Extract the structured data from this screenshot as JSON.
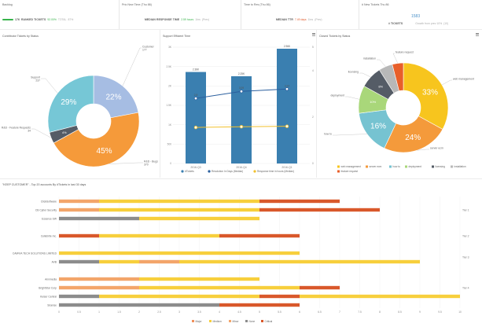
{
  "kpis": {
    "backlog": {
      "title": "Backlog",
      "count": "176",
      "label": "RANKED TICKETS",
      "pct": "92.00%",
      "total_label": "TOTAL",
      "total": "87%"
    },
    "prio_new": {
      "title": "Prio New Time (Thu 86)",
      "label": "MEDIAN RESPONSE TIME",
      "value": "2.59 hours",
      "sub": "1hrs",
      "sub2": "(Prev)"
    },
    "time_res": {
      "title": "Time to Res (Thu 86)",
      "label": "MEDIAN TTR",
      "value": "7.49 days",
      "sub": "1hrs",
      "sub2": "(Prev)"
    },
    "new_tickets": {
      "title": "# New Tickets Thu 86",
      "number": "1583",
      "label": "# TICKETS",
      "sub": "Growth from prev 10%",
      "sub2": "(10)"
    }
  },
  "panels": {
    "contrib_title": "Contributor Tickets by Status",
    "support_title": "Support Efficient Time",
    "closed_title": "Closed Tickets by Status",
    "bottom_title": "\"KEEP CUSTOMER\" - Top 20 accounts By #Tickets in last 30 days"
  },
  "chart_data": [
    {
      "type": "pie",
      "title": "Contributor Tickets by Status",
      "slices": [
        {
          "name": "Customer",
          "value": 22,
          "label": "22%",
          "outer": "Customer\n177",
          "color": "#a6bde3"
        },
        {
          "name": "R&D - Bugs",
          "value": 45,
          "label": "45%",
          "outer": "R&D - Bugs\n370",
          "color": "#f59a3a"
        },
        {
          "name": "R&D - Feature Requests",
          "value": 4,
          "label": "4%",
          "outer": "R&D - Feature Requests\n34",
          "color": "#555c66"
        },
        {
          "name": "Support",
          "value": 29,
          "label": "29%",
          "outer": "Support\n237",
          "color": "#76c7d6"
        }
      ]
    },
    {
      "type": "bar",
      "title": "Support Efficient Time",
      "categories": [
        "2016-Q3",
        "2016-Q4",
        "2016-Q1"
      ],
      "series": [
        {
          "name": "#Tickets",
          "values": [
            2.36,
            2.25,
            2.96
          ],
          "labels": [
            "2.36K",
            "2.25K",
            "2.96K"
          ],
          "color": "#3a7fb0"
        },
        {
          "name": "Resolution In Days (Median)",
          "values": [
            2.8,
            3.1,
            3.2
          ],
          "labels": [
            "2.8",
            "3.09",
            "3.24"
          ],
          "color": "#2b5f9e"
        },
        {
          "name": "Response time in hours (Median)",
          "values": [
            1.55,
            1.58,
            1.6
          ],
          "labels": [
            "",
            "",
            ""
          ],
          "color": "#f2c12e"
        }
      ],
      "y_left": {
        "ticks": [
          "0",
          "500",
          "1K",
          "1.5K",
          "2K",
          "2.5K",
          "3K"
        ],
        "max": 3
      },
      "y_right": {
        "ticks": [
          "0",
          "2",
          "4",
          "5"
        ],
        "max": 5
      }
    },
    {
      "type": "pie",
      "title": "Closed Tickets by Status",
      "slices": [
        {
          "name": "web management",
          "value": 33,
          "label": "33%",
          "outer": "web management",
          "color": "#f7c51e"
        },
        {
          "name": "server ecm",
          "value": 24,
          "label": "24%",
          "outer": "server ecm",
          "color": "#f49a3b"
        },
        {
          "name": "how to",
          "value": 16,
          "label": "16%",
          "outer": "how to",
          "color": "#76c3d1"
        },
        {
          "name": "deployment",
          "value": 10,
          "label": "10%",
          "outer": "deployment",
          "color": "#a9d77a"
        },
        {
          "name": "licensing",
          "value": 8,
          "label": "8%",
          "outer": "licensing",
          "color": "#555c66"
        },
        {
          "name": "installation",
          "value": 5,
          "label": "",
          "outer": "installation",
          "color": "#b8b8b8"
        },
        {
          "name": "feature request",
          "value": 4,
          "label": "",
          "outer": "feature request",
          "color": "#e85f2a"
        }
      ],
      "legend": [
        "web management",
        "server ecm",
        "how to",
        "deployment",
        "licensing",
        "installation",
        "feature request"
      ]
    },
    {
      "type": "bar",
      "orientation": "horizontal-stacked",
      "title": "\"KEEP CUSTOMER\" - Top 20 accounts By #Tickets in last 30 days",
      "series_names": [
        "Major",
        "Medium",
        "Minor",
        "None",
        "Critical"
      ],
      "series_colors": [
        "#f0905c",
        "#f7cf3c",
        "#f3a56a",
        "#8c8c8c",
        "#d9582b"
      ],
      "x_ticks": [
        "0",
        "0.5",
        "1",
        "1.5",
        "2",
        "2.5",
        "3",
        "3.5",
        "4",
        "4.5",
        "5",
        "5.5",
        "6",
        "6.5",
        "7",
        "7.5",
        "8",
        "8.5",
        "9",
        "9.5",
        "10"
      ],
      "x_max": 10,
      "rows": [
        {
          "name": "ClickSoftware",
          "tier": "Tier 1",
          "segments": [
            [
              "#f3a56a",
              1
            ],
            [
              "#f7cf3c",
              4
            ],
            [
              "#d9582b",
              2
            ]
          ]
        },
        {
          "name": "CB Cyber Security",
          "tier": "Tier 1",
          "segments": [
            [
              "#f3a56a",
              1
            ],
            [
              "#f7cf3c",
              4
            ],
            [
              "#d9582b",
              3
            ]
          ]
        },
        {
          "name": "Essence SW",
          "tier": "Tier 1",
          "segments": [
            [
              "#8c8c8c",
              2
            ],
            [
              "#f7cf3c",
              3
            ]
          ]
        },
        {
          "name": "Cellebrite Inc.",
          "tier": "Tier 2",
          "segments": [
            [
              "#d9582b",
              1
            ],
            [
              "#f7cf3c",
              3
            ],
            [
              "#d9582b",
              2
            ]
          ]
        },
        {
          "name": "CAMVIA TECH SOLUTIONS LIMITED",
          "tier": "Tier 3",
          "segments": [
            [
              "#f7cf3c",
              6
            ]
          ]
        },
        {
          "name": "AVB",
          "tier": "Tier 3",
          "segments": [
            [
              "#8c8c8c",
              1
            ],
            [
              "#f7cf3c",
              1
            ],
            [
              "#f3a56a",
              1
            ],
            [
              "#f7cf3c",
              6
            ]
          ]
        },
        {
          "name": "Annmedia",
          "tier": "Tier 4",
          "segments": [
            [
              "#f3a56a",
              2
            ],
            [
              "#f7cf3c",
              3
            ]
          ]
        },
        {
          "name": "BrightStar Corp",
          "tier": "Tier 4",
          "segments": [
            [
              "#f3a56a",
              2
            ],
            [
              "#f7cf3c",
              4
            ],
            [
              "#d9582b",
              1
            ]
          ]
        },
        {
          "name": "Keiser Central",
          "tier": "Tier 4",
          "segments": [
            [
              "#8c8c8c",
              1
            ],
            [
              "#f7cf3c",
              4
            ],
            [
              "#d9582b",
              1
            ],
            [
              "#f7cf3c",
              4
            ]
          ]
        },
        {
          "name": "Sisense",
          "tier": "Tier 4",
          "segments": [
            [
              "#8c8c8c",
              4
            ],
            [
              "#d9582b",
              2
            ]
          ]
        }
      ],
      "tiers": [
        {
          "label": "Tier 1",
          "row_index": 1
        },
        {
          "label": "Tier 2",
          "row_index": 3
        },
        {
          "label": "Tier 3",
          "row_index": 4.5
        },
        {
          "label": "Tier 4",
          "row_index": 7.5
        }
      ]
    }
  ]
}
